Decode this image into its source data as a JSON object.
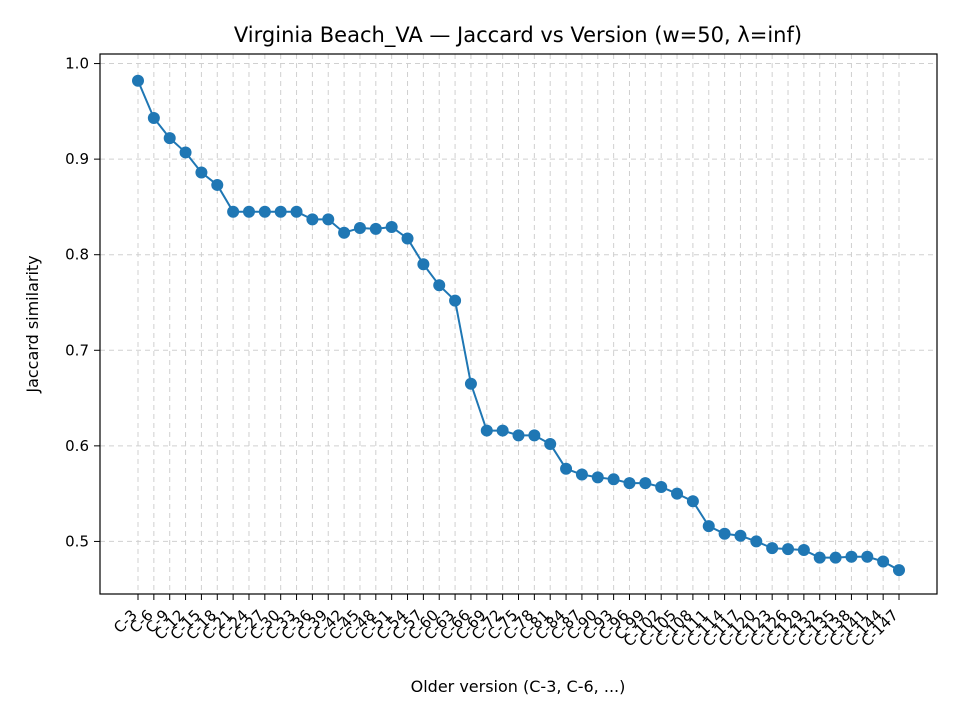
{
  "chart_data": {
    "type": "line",
    "title": "Virginia Beach_VA — Jaccard vs Version (w=50, λ=inf)",
    "xlabel": "Older version (C-3, C-6, ...)",
    "ylabel": "Jaccard similarity",
    "ylim": [
      0.445,
      1.01
    ],
    "yticks": [
      0.5,
      0.6,
      0.7,
      0.8,
      0.9,
      1.0
    ],
    "grid": true,
    "line_color": "#1f77b4",
    "categories": [
      "C-3",
      "C-6",
      "C-9",
      "C-12",
      "C-15",
      "C-18",
      "C-21",
      "C-24",
      "C-27",
      "C-30",
      "C-33",
      "C-36",
      "C-39",
      "C-42",
      "C-45",
      "C-48",
      "C-51",
      "C-54",
      "C-57",
      "C-60",
      "C-63",
      "C-66",
      "C-69",
      "C-72",
      "C-75",
      "C-78",
      "C-81",
      "C-84",
      "C-87",
      "C-90",
      "C-93",
      "C-96",
      "C-99",
      "C-102",
      "C-105",
      "C-108",
      "C-111",
      "C-114",
      "C-117",
      "C-120",
      "C-123",
      "C-126",
      "C-129",
      "C-132",
      "C-135",
      "C-138",
      "C-141",
      "C-144",
      "C-147"
    ],
    "series": [
      {
        "values": [
          0.982,
          0.943,
          0.922,
          0.907,
          0.886,
          0.873,
          0.845,
          0.845,
          0.845,
          0.845,
          0.845,
          0.837,
          0.837,
          0.823,
          0.828,
          0.827,
          0.829,
          0.817,
          0.79,
          0.768,
          0.752,
          0.665,
          0.616,
          0.616,
          0.611,
          0.611,
          0.602,
          0.576,
          0.57,
          0.567,
          0.565,
          0.561,
          0.561,
          0.557,
          0.55,
          0.542,
          0.516,
          0.508,
          0.506,
          0.5,
          0.493,
          0.492,
          0.491,
          0.483,
          0.483,
          0.484,
          0.484,
          0.479,
          0.47
        ]
      }
    ]
  }
}
